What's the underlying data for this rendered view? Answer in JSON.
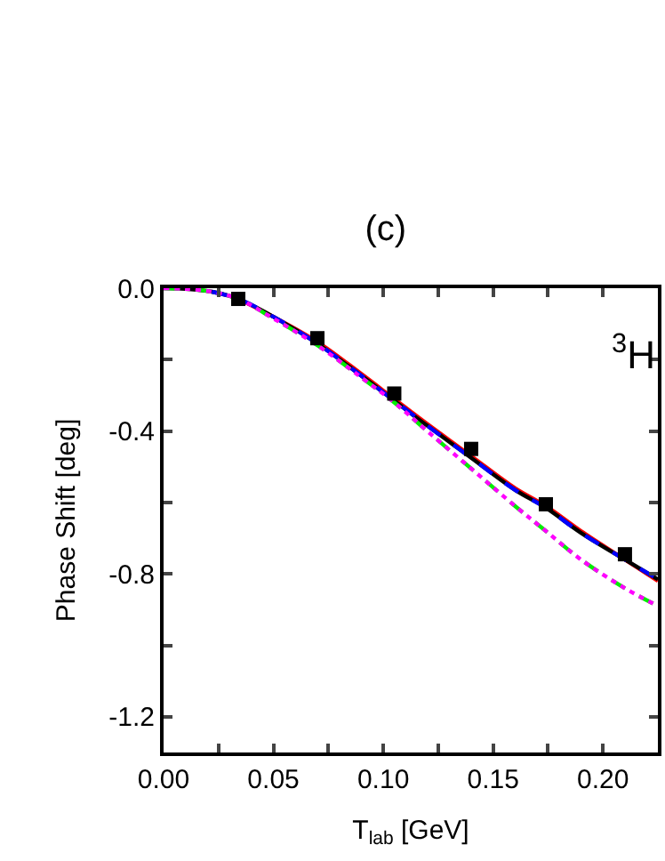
{
  "chart_data": {
    "type": "line",
    "title": "(c)",
    "xlabel": "T$_{lab}$ [GeV]",
    "ylabel": "Phase Shift [deg]",
    "annotations": [
      "$^{3}$H"
    ],
    "xlim": [
      0,
      0.225
    ],
    "xticks": [
      {
        "value": 0,
        "label": "0.00"
      },
      {
        "value": 0.025,
        "label": null
      },
      {
        "value": 0.05,
        "label": "0.05"
      },
      {
        "value": 0.075,
        "label": null
      },
      {
        "value": 0.1,
        "label": "0.10"
      },
      {
        "value": 0.125,
        "label": null
      },
      {
        "value": 0.15,
        "label": "0.15"
      },
      {
        "value": 0.175,
        "label": null
      },
      {
        "value": 0.2,
        "label": "0.20"
      }
    ],
    "ylim": [
      -1.3,
      0
    ],
    "yticks": [
      {
        "value": 0,
        "label": "0.0"
      },
      {
        "value": -0.2,
        "label": null
      },
      -0.4,
      {
        "value": -0.6,
        "label": null
      },
      -0.8,
      {
        "value": -1.0,
        "label": null
      },
      -1.2
    ],
    "series": [
      {
        "color": "#ff0000",
        "line_style": "solid",
        "x": [
          0.034,
          0.05,
          0.07,
          0.09,
          0.105,
          0.12,
          0.14,
          0.16,
          0.174,
          0.19,
          0.21,
          0.225
        ],
        "values": [
          -0.03,
          -0.08,
          -0.15,
          -0.24,
          -0.31,
          -0.38,
          -0.47,
          -0.56,
          -0.61,
          -0.68,
          -0.76,
          -0.82
        ]
      },
      {
        "color": "#000000",
        "line_style": "solid",
        "x": [
          0,
          0.01,
          0.022,
          0.034,
          0.05,
          0.07,
          0.09,
          0.105,
          0.12,
          0.14,
          0.16,
          0.174,
          0.19,
          0.21,
          0.225
        ],
        "values": [
          0,
          -0.002,
          -0.01,
          -0.03,
          -0.08,
          -0.155,
          -0.245,
          -0.315,
          -0.385,
          -0.475,
          -0.565,
          -0.615,
          -0.685,
          -0.76,
          -0.815
        ]
      },
      {
        "color": "#0000ff",
        "line_style": "dashed",
        "x": [
          0.022,
          0.034,
          0.05,
          0.07,
          0.09,
          0.105,
          0.12,
          0.14,
          0.16,
          0.174,
          0.19,
          0.21,
          0.225
        ],
        "values": [
          -0.01,
          -0.03,
          -0.08,
          -0.155,
          -0.245,
          -0.315,
          -0.385,
          -0.475,
          -0.565,
          -0.615,
          -0.685,
          -0.76,
          -0.815
        ]
      },
      {
        "color": "#00ee00",
        "line_style": "dashed",
        "x": [
          0,
          0.01,
          0.022,
          0.034,
          0.05,
          0.07,
          0.09,
          0.105,
          0.12,
          0.14,
          0.16,
          0.174,
          0.19,
          0.21,
          0.225
        ],
        "values": [
          0,
          -0.002,
          -0.01,
          -0.03,
          -0.085,
          -0.16,
          -0.25,
          -0.32,
          -0.4,
          -0.505,
          -0.61,
          -0.68,
          -0.76,
          -0.84,
          -0.89
        ]
      },
      {
        "color": "#ff00ff",
        "line_style": "dotted",
        "x": [
          0,
          0.01,
          0.022,
          0.034,
          0.05,
          0.07,
          0.09,
          0.105,
          0.12,
          0.14,
          0.16,
          0.174,
          0.19,
          0.21,
          0.225
        ],
        "values": [
          0,
          -0.002,
          -0.01,
          -0.03,
          -0.085,
          -0.16,
          -0.25,
          -0.32,
          -0.4,
          -0.505,
          -0.61,
          -0.68,
          -0.76,
          -0.84,
          -0.89
        ]
      },
      {
        "type": "scatter",
        "marker": "square",
        "color": "#000000",
        "x": [
          0.034,
          0.07,
          0.105,
          0.14,
          0.174,
          0.21
        ],
        "values": [
          -0.03,
          -0.14,
          -0.295,
          -0.45,
          -0.605,
          -0.745
        ]
      }
    ]
  }
}
